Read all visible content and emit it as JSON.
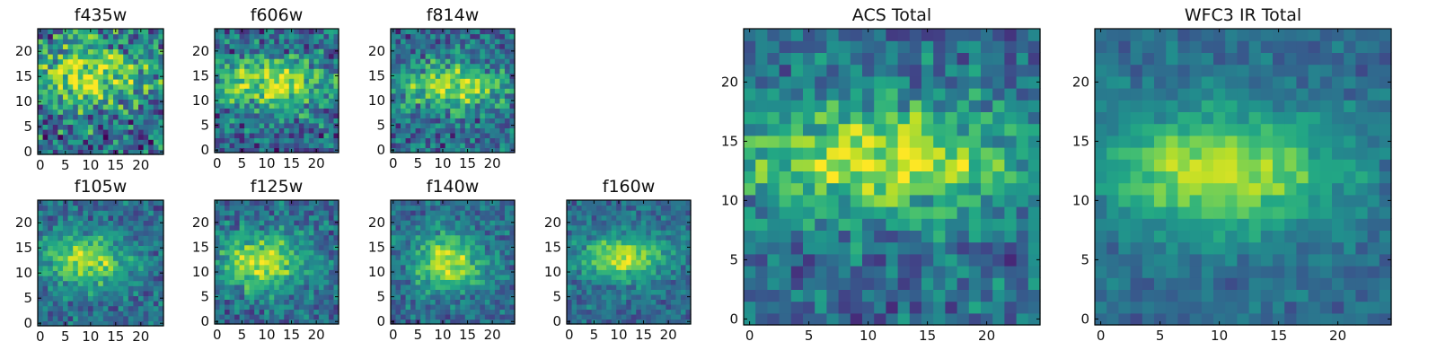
{
  "chart_data": [
    {
      "type": "heatmap",
      "title": "f435w",
      "xlim": [
        0,
        25
      ],
      "ylim": [
        0,
        25
      ],
      "xticks": [
        0,
        5,
        10,
        15,
        20
      ],
      "yticks": [
        0,
        5,
        10,
        15,
        20
      ],
      "colormap": "viridis",
      "peak": {
        "x": 10,
        "y": 15,
        "sx": 8,
        "sy": 5
      },
      "noise": 0.55,
      "seed": 11
    },
    {
      "type": "heatmap",
      "title": "f606w",
      "xlim": [
        0,
        25
      ],
      "ylim": [
        0,
        25
      ],
      "xticks": [
        0,
        5,
        10,
        15,
        20
      ],
      "yticks": [
        0,
        5,
        10,
        15,
        20
      ],
      "colormap": "viridis",
      "peak": {
        "x": 11,
        "y": 13.5,
        "sx": 8,
        "sy": 3.5
      },
      "noise": 0.45,
      "seed": 22
    },
    {
      "type": "heatmap",
      "title": "f814w",
      "xlim": [
        0,
        25
      ],
      "ylim": [
        0,
        25
      ],
      "xticks": [
        0,
        5,
        10,
        15,
        20
      ],
      "yticks": [
        0,
        5,
        10,
        15,
        20
      ],
      "colormap": "viridis",
      "peak": {
        "x": 12,
        "y": 13,
        "sx": 7,
        "sy": 3
      },
      "noise": 0.4,
      "seed": 33
    },
    {
      "type": "heatmap",
      "title": "f105w",
      "xlim": [
        0,
        25
      ],
      "ylim": [
        0,
        25
      ],
      "xticks": [
        0,
        5,
        10,
        15,
        20
      ],
      "yticks": [
        0,
        5,
        10,
        15,
        20
      ],
      "colormap": "viridis",
      "peak": {
        "x": 9,
        "y": 12.5,
        "sx": 6,
        "sy": 3.5
      },
      "noise": 0.3,
      "seed": 44
    },
    {
      "type": "heatmap",
      "title": "f125w",
      "xlim": [
        0,
        25
      ],
      "ylim": [
        0,
        25
      ],
      "xticks": [
        0,
        5,
        10,
        15,
        20
      ],
      "yticks": [
        0,
        5,
        10,
        15,
        20
      ],
      "colormap": "viridis",
      "peak": {
        "x": 9,
        "y": 12,
        "sx": 6,
        "sy": 4
      },
      "noise": 0.32,
      "seed": 55
    },
    {
      "type": "heatmap",
      "title": "f140w",
      "xlim": [
        0,
        25
      ],
      "ylim": [
        0,
        25
      ],
      "xticks": [
        0,
        5,
        10,
        15,
        20
      ],
      "yticks": [
        0,
        5,
        10,
        15,
        20
      ],
      "colormap": "viridis",
      "peak": {
        "x": 11,
        "y": 12,
        "sx": 5,
        "sy": 4
      },
      "noise": 0.28,
      "seed": 66
    },
    {
      "type": "heatmap",
      "title": "f160w",
      "xlim": [
        0,
        25
      ],
      "ylim": [
        0,
        25
      ],
      "xticks": [
        0,
        5,
        10,
        15,
        20
      ],
      "yticks": [
        0,
        5,
        10,
        15,
        20
      ],
      "colormap": "viridis",
      "peak": {
        "x": 11,
        "y": 13,
        "sx": 6,
        "sy": 3
      },
      "noise": 0.25,
      "seed": 77
    },
    {
      "type": "heatmap",
      "title": "ACS Total",
      "xlim": [
        0,
        25
      ],
      "ylim": [
        0,
        25
      ],
      "xticks": [
        0,
        5,
        10,
        15,
        20
      ],
      "yticks": [
        0,
        5,
        10,
        15,
        20
      ],
      "colormap": "viridis",
      "peak": {
        "x": 11,
        "y": 13.5,
        "sx": 9,
        "sy": 3.5
      },
      "noise": 0.35,
      "seed": 88
    },
    {
      "type": "heatmap",
      "title": "WFC3 IR Total",
      "xlim": [
        0,
        25
      ],
      "ylim": [
        0,
        25
      ],
      "xticks": [
        0,
        5,
        10,
        15,
        20
      ],
      "yticks": [
        0,
        5,
        10,
        15,
        20
      ],
      "colormap": "viridis",
      "peak": {
        "x": 10,
        "y": 12.5,
        "sx": 7,
        "sy": 3.5
      },
      "noise": 0.18,
      "seed": 99
    }
  ]
}
